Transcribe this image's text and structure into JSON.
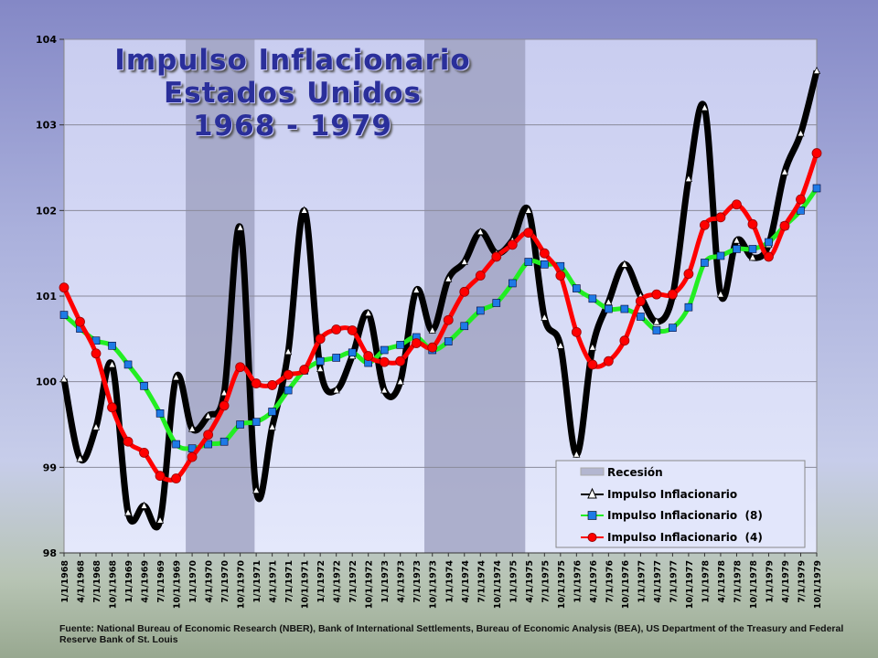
{
  "chart_data": {
    "type": "line",
    "title": [
      "Impulso Inflacionario",
      "Estados Unidos",
      "1968 - 1979"
    ],
    "ylim": [
      98,
      104
    ],
    "yticks": [
      98,
      99,
      100,
      101,
      102,
      103,
      104
    ],
    "grid": true,
    "legend_position": "bottom-right",
    "categories": [
      "1/1/1968",
      "4/1/1968",
      "7/1/1968",
      "10/1/1968",
      "1/1/1969",
      "4/1/1969",
      "7/1/1969",
      "10/1/1969",
      "1/1/1970",
      "4/1/1970",
      "7/1/1970",
      "10/1/1970",
      "1/1/1971",
      "4/1/1971",
      "7/1/1971",
      "10/1/1971",
      "1/1/1972",
      "4/1/1972",
      "7/1/1972",
      "10/1/1972",
      "1/1/1973",
      "4/1/1973",
      "7/1/1973",
      "10/1/1973",
      "1/1/1974",
      "4/1/1974",
      "7/1/1974",
      "10/1/1974",
      "1/1/1975",
      "4/1/1975",
      "7/1/1975",
      "10/1/1975",
      "1/1/1976",
      "4/1/1976",
      "7/1/1976",
      "10/1/1976",
      "1/1/1977",
      "4/1/1977",
      "7/1/1977",
      "10/1/1977",
      "1/1/1978",
      "4/1/1978",
      "7/1/1978",
      "10/1/1978",
      "1/1/1979",
      "4/1/1979",
      "7/1/1979",
      "10/1/1979"
    ],
    "recessions": {
      "label": "Recesión",
      "color": "#9a9cbc",
      "ranges_index": [
        [
          7.6,
          11.9
        ],
        [
          22.5,
          28.8
        ]
      ]
    },
    "series": [
      {
        "name": "Impulso Inflacionario",
        "color": "#000000",
        "marker": "triangle",
        "values": [
          100.03,
          99.1,
          99.47,
          100.2,
          98.47,
          98.55,
          98.38,
          100.05,
          99.45,
          99.6,
          99.87,
          101.8,
          98.73,
          99.47,
          100.35,
          102.0,
          100.15,
          99.9,
          100.3,
          100.8,
          99.9,
          100.0,
          101.07,
          100.6,
          101.2,
          101.4,
          101.75,
          101.5,
          101.65,
          102.0,
          100.75,
          100.42,
          99.15,
          100.4,
          100.93,
          101.37,
          101.0,
          100.7,
          101.0,
          102.37,
          103.2,
          101.02,
          101.65,
          101.45,
          101.6,
          102.45,
          102.9,
          103.63
        ]
      },
      {
        "name": "Impulso Inflacionario  (8)",
        "color": "#22ee22",
        "marker": "square",
        "values": [
          100.78,
          100.62,
          100.48,
          100.42,
          100.2,
          99.95,
          99.63,
          99.27,
          99.22,
          99.27,
          99.3,
          99.5,
          99.53,
          99.65,
          99.9,
          100.13,
          100.24,
          100.28,
          100.34,
          100.22,
          100.37,
          100.43,
          100.52,
          100.37,
          100.47,
          100.65,
          100.83,
          100.92,
          101.15,
          101.4,
          101.37,
          101.35,
          101.09,
          100.97,
          100.85,
          100.85,
          100.76,
          100.6,
          100.63,
          100.87,
          101.39,
          101.47,
          101.55,
          101.55,
          101.63,
          101.82,
          102.0,
          102.26
        ]
      },
      {
        "name": "Impulso Inflacionario  (4)",
        "color": "#ff0000",
        "marker": "circle",
        "values": [
          101.1,
          100.7,
          100.33,
          99.7,
          99.3,
          99.17,
          98.9,
          98.87,
          99.12,
          99.38,
          99.72,
          100.17,
          99.98,
          99.96,
          100.08,
          100.14,
          100.5,
          100.61,
          100.6,
          100.3,
          100.23,
          100.24,
          100.45,
          100.4,
          100.72,
          101.05,
          101.24,
          101.46,
          101.6,
          101.74,
          101.5,
          101.24,
          100.58,
          100.2,
          100.24,
          100.48,
          100.94,
          101.02,
          101.02,
          101.26,
          101.83,
          101.92,
          102.07,
          101.84,
          101.46,
          101.82,
          102.13,
          102.67
        ]
      }
    ]
  },
  "source": "Fuente: National Bureau of Economic Research (NBER), Bank of International Settlements, Bureau of Economic Analysis (BEA), US Department of the Treasury and Federal Reserve Bank of St. Louis"
}
